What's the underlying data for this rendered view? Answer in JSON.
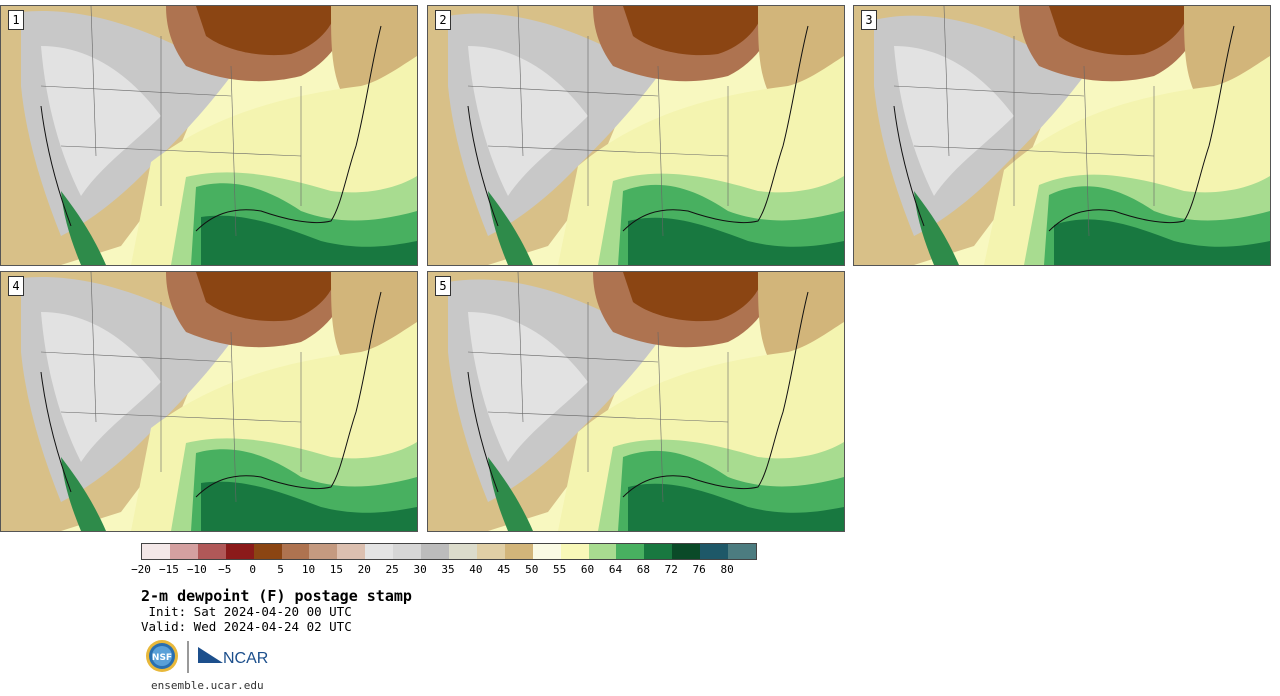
{
  "panels": [
    {
      "label": "1"
    },
    {
      "label": "2"
    },
    {
      "label": "3"
    },
    {
      "label": "4"
    },
    {
      "label": "5"
    }
  ],
  "colorbar": {
    "colors": [
      "#f4e8e8",
      "#d4a0a0",
      "#b05858",
      "#8b1a1a",
      "#8b4513",
      "#ae7350",
      "#c49a80",
      "#dcc0b0",
      "#e4e4e4",
      "#d6d6d6",
      "#bcbcbc",
      "#dcdccc",
      "#e0cfa6",
      "#d2b57a",
      "#fafae4",
      "#f8f8b8",
      "#a8dc90",
      "#48b060",
      "#187840",
      "#0a4a28",
      "#1e5868",
      "#4c7c80"
    ],
    "tick_labels": [
      "−20",
      "−15",
      "−10",
      "−5",
      "0",
      "5",
      "10",
      "15",
      "20",
      "25",
      "30",
      "35",
      "40",
      "45",
      "50",
      "55",
      "60",
      "64",
      "68",
      "72",
      "76",
      "80"
    ]
  },
  "title": "2-m dewpoint (F) postage stamp",
  "init_text": " Init: Sat 2024-04-20 00 UTC",
  "valid_text": "Valid: Wed 2024-04-24 02 UTC",
  "logos": {
    "nsf_text": "NSF",
    "ncar_text": "NCAR"
  },
  "website": "ensemble.ucar.edu"
}
